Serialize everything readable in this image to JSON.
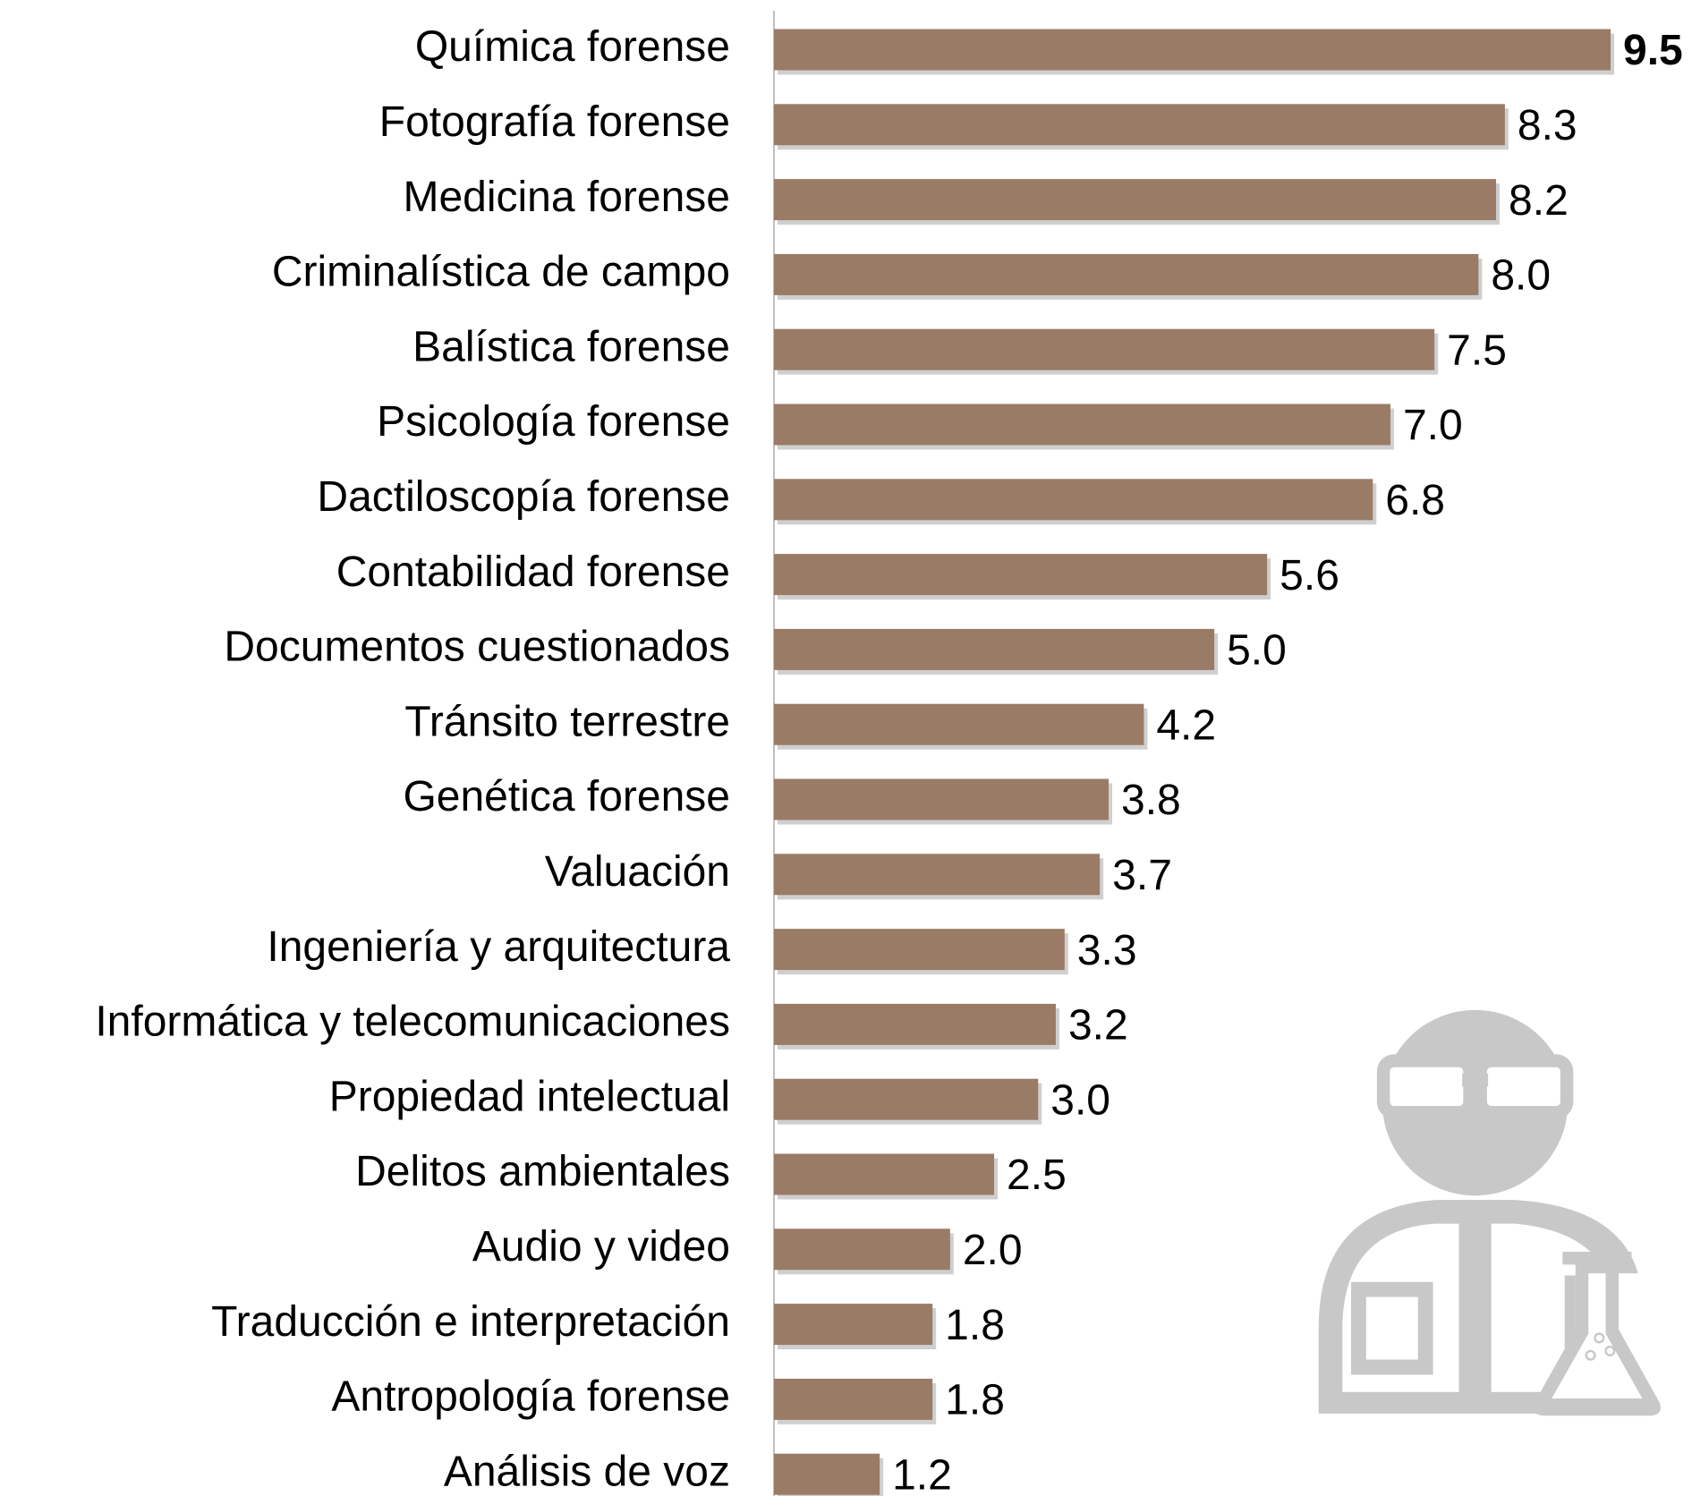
{
  "chart_data": {
    "type": "barh",
    "categories": [
      "Química forense",
      "Fotografía forense",
      "Medicina forense",
      "Criminalística de campo",
      "Balística forense",
      "Psicología forense",
      "Dactiloscopía forense",
      "Contabilidad forense",
      "Documentos cuestionados",
      "Tránsito terrestre",
      "Genética forense",
      "Valuación",
      "Ingeniería y arquitectura",
      "Informática y telecomunicaciones",
      "Propiedad intelectual",
      "Delitos ambientales",
      "Audio y video",
      "Traducción e interpretación",
      "Antropología forense",
      "Análisis de voz"
    ],
    "values": [
      9.5,
      8.3,
      8.2,
      8.0,
      7.5,
      7.0,
      6.8,
      5.6,
      5.0,
      4.2,
      3.8,
      3.7,
      3.3,
      3.2,
      3.0,
      2.5,
      2.0,
      1.8,
      1.8,
      1.2
    ],
    "value_labels": [
      "9.5",
      "8.3",
      "8.2",
      "8.0",
      "7.5",
      "7.0",
      "6.8",
      "5.6",
      "5.0",
      "4.2",
      "3.8",
      "3.7",
      "3.3",
      "3.2",
      "3.0",
      "2.5",
      "2.0",
      "1.8",
      "1.8",
      "1.2"
    ],
    "color": "#9a7b66"
  }
}
